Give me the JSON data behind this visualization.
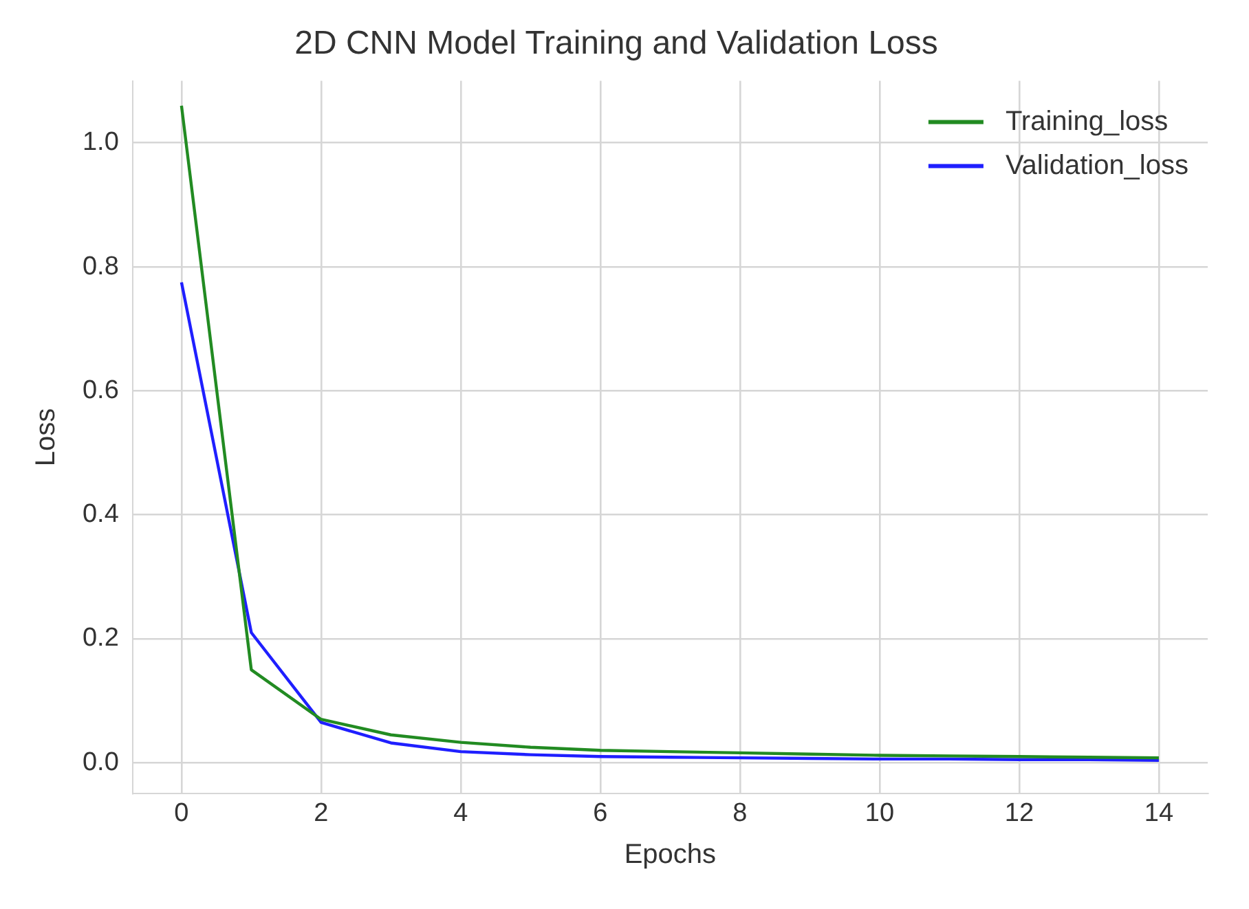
{
  "chart_data": {
    "type": "line",
    "title": "2D CNN Model Training and Validation Loss",
    "xlabel": "Epochs",
    "ylabel": "Loss",
    "x": [
      0,
      1,
      2,
      3,
      4,
      5,
      6,
      7,
      8,
      9,
      10,
      11,
      12,
      13,
      14
    ],
    "series": [
      {
        "name": "Training_loss",
        "color": "#228b22",
        "values": [
          1.06,
          0.15,
          0.07,
          0.045,
          0.033,
          0.025,
          0.02,
          0.018,
          0.016,
          0.014,
          0.012,
          0.011,
          0.01,
          0.009,
          0.008
        ]
      },
      {
        "name": "Validation_loss",
        "color": "#1f1fff",
        "values": [
          0.775,
          0.21,
          0.065,
          0.032,
          0.018,
          0.013,
          0.01,
          0.009,
          0.008,
          0.007,
          0.006,
          0.006,
          0.005,
          0.005,
          0.004
        ]
      }
    ],
    "xlim": [
      -0.7,
      14.7
    ],
    "xticks": [
      0,
      2,
      4,
      6,
      8,
      10,
      12,
      14
    ],
    "ylim": [
      -0.05,
      1.1
    ],
    "yticks": [
      {
        "value": 0,
        "label": "0.0"
      },
      0.2,
      0.4,
      0.6,
      0.8,
      {
        "value": 1,
        "label": "1.0"
      }
    ],
    "grid": true,
    "legend": "top right",
    "marker": "none",
    "line_style": "solid"
  }
}
